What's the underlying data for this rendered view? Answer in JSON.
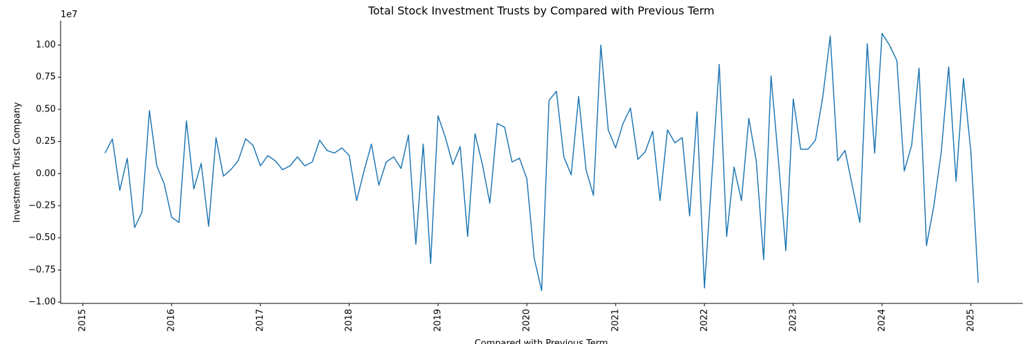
{
  "chart_data": {
    "type": "line",
    "title": "Total Stock Investment Trusts by Compared with Previous Term",
    "x_label": "Compared with Previous Term",
    "y_label": "Investment Trust Company",
    "y_offset_label": "1e7",
    "x": [
      "2015-04",
      "2015-05",
      "2015-06",
      "2015-07",
      "2015-08",
      "2015-09",
      "2015-10",
      "2015-11",
      "2015-12",
      "2016-01",
      "2016-02",
      "2016-03",
      "2016-04",
      "2016-05",
      "2016-06",
      "2016-07",
      "2016-08",
      "2016-09",
      "2016-10",
      "2016-11",
      "2016-12",
      "2017-01",
      "2017-02",
      "2017-03",
      "2017-04",
      "2017-05",
      "2017-06",
      "2017-07",
      "2017-08",
      "2017-09",
      "2017-10",
      "2017-11",
      "2017-12",
      "2018-01",
      "2018-02",
      "2018-03",
      "2018-04",
      "2018-05",
      "2018-06",
      "2018-07",
      "2018-08",
      "2018-09",
      "2018-10",
      "2018-11",
      "2018-12",
      "2019-01",
      "2019-02",
      "2019-03",
      "2019-04",
      "2019-05",
      "2019-06",
      "2019-07",
      "2019-08",
      "2019-09",
      "2019-10",
      "2019-11",
      "2019-12",
      "2020-01",
      "2020-02",
      "2020-03",
      "2020-04",
      "2020-05",
      "2020-06",
      "2020-07",
      "2020-08",
      "2020-09",
      "2020-10",
      "2020-11",
      "2020-12",
      "2021-01",
      "2021-02",
      "2021-03",
      "2021-04",
      "2021-05",
      "2021-06",
      "2021-07",
      "2021-08",
      "2021-09",
      "2021-10",
      "2021-11",
      "2021-12",
      "2022-01",
      "2022-02",
      "2022-03",
      "2022-04",
      "2022-05",
      "2022-06",
      "2022-07",
      "2022-08",
      "2022-09",
      "2022-10",
      "2022-11",
      "2022-12",
      "2023-01",
      "2023-02",
      "2023-03",
      "2023-04",
      "2023-05",
      "2023-06",
      "2023-07",
      "2023-08",
      "2023-09",
      "2023-10",
      "2023-11",
      "2023-12",
      "2024-01",
      "2024-02",
      "2024-03",
      "2024-04",
      "2024-05",
      "2024-06",
      "2024-07",
      "2024-08",
      "2024-09",
      "2024-10",
      "2024-11",
      "2024-12",
      "2025-01",
      "2025-02"
    ],
    "series": [
      {
        "name": "Total Stock Investment Trusts",
        "color": "#1f77b4",
        "values": [
          0.16,
          0.27,
          -0.13,
          0.12,
          -0.42,
          -0.3,
          0.49,
          0.06,
          -0.08,
          -0.34,
          -0.38,
          0.41,
          -0.12,
          0.08,
          -0.41,
          0.28,
          -0.02,
          0.03,
          0.1,
          0.27,
          0.22,
          0.06,
          0.14,
          0.1,
          0.03,
          0.06,
          0.13,
          0.06,
          0.09,
          0.26,
          0.18,
          0.16,
          0.2,
          0.14,
          -0.21,
          0.02,
          0.23,
          -0.09,
          0.09,
          0.13,
          0.04,
          0.3,
          -0.55,
          0.23,
          -0.7,
          0.45,
          0.28,
          0.07,
          0.21,
          -0.49,
          0.31,
          0.07,
          -0.23,
          0.39,
          0.36,
          0.09,
          0.12,
          -0.04,
          -0.66,
          -0.91,
          0.57,
          0.64,
          0.13,
          -0.01,
          0.6,
          0.03,
          -0.17,
          1.0,
          0.34,
          0.2,
          0.39,
          0.51,
          0.11,
          0.17,
          0.33,
          -0.21,
          0.34,
          0.24,
          0.28,
          -0.33,
          0.48,
          -0.89,
          -0.02,
          0.85,
          -0.49,
          0.05,
          -0.21,
          0.43,
          0.1,
          -0.67,
          0.76,
          0.1,
          -0.6,
          0.58,
          0.19,
          0.19,
          0.26,
          0.6,
          1.07,
          0.1,
          0.18,
          -0.1,
          -0.38,
          1.01,
          0.16,
          1.09,
          1.0,
          0.88,
          0.02,
          0.22,
          0.82,
          -0.56,
          -0.25,
          0.17,
          0.83,
          -0.06,
          0.74,
          0.17,
          -0.85
        ]
      }
    ],
    "xlim": [
      "2014-10",
      "2025-08"
    ],
    "xticks": [
      "2015",
      "2016",
      "2017",
      "2018",
      "2019",
      "2020",
      "2021",
      "2022",
      "2023",
      "2024",
      "2025"
    ],
    "ylim": [
      -1.01,
      1.19
    ],
    "yticks": [
      {
        "value": -1,
        "label": "−1.00"
      },
      {
        "value": -0.75,
        "label": "−0.75"
      },
      {
        "value": -0.5,
        "label": "−0.50"
      },
      {
        "value": -0.25,
        "label": "−0.25"
      },
      {
        "value": 0,
        "label": "0.00"
      },
      {
        "value": 0.25,
        "label": "0.25"
      },
      {
        "value": 0.5,
        "label": "0.50"
      },
      {
        "value": 0.75,
        "label": "0.75"
      },
      {
        "value": 1,
        "label": "1.00"
      }
    ],
    "grid": false
  }
}
